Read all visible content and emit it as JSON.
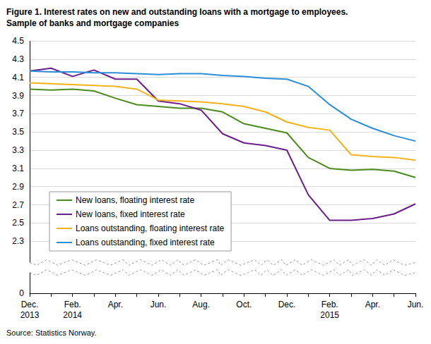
{
  "chart_data": {
    "type": "line",
    "title": "Figure 1. Interest rates on new and outstanding loans with a mortgage to employees.\nSample of banks and mortgage companies",
    "source": "Source: Statistics Norway.",
    "categories": [
      "Dec.\n2013",
      null,
      "Feb.\n2014",
      null,
      "Apr.",
      null,
      "Jun.",
      null,
      "Aug.",
      null,
      "Oct.",
      null,
      "Dec.",
      null,
      "Feb.\n2015",
      null,
      "Apr.",
      null,
      "Jun."
    ],
    "series": [
      {
        "name": "New loans, floating interest rate",
        "color": "#4b8b1e",
        "values": [
          3.97,
          3.96,
          3.97,
          3.95,
          3.87,
          3.8,
          3.78,
          3.76,
          3.76,
          3.72,
          3.59,
          3.54,
          3.49,
          3.22,
          3.1,
          3.08,
          3.09,
          3.07,
          3.0
        ]
      },
      {
        "name": "New loans, fixed interest rate",
        "color": "#6a1f8a",
        "values": [
          4.17,
          4.2,
          4.11,
          4.18,
          4.08,
          4.08,
          3.84,
          3.81,
          3.74,
          3.48,
          3.38,
          3.35,
          3.3,
          2.81,
          2.53,
          2.53,
          2.55,
          2.6,
          2.71
        ]
      },
      {
        "name": "Loans outstanding, floating interest rate",
        "color": "#f2b21a",
        "values": [
          4.04,
          4.03,
          4.02,
          4.01,
          4.0,
          3.97,
          3.85,
          3.84,
          3.83,
          3.81,
          3.78,
          3.72,
          3.61,
          3.55,
          3.52,
          3.25,
          3.23,
          3.22,
          3.19
        ]
      },
      {
        "name": "Loans outstanding, fixed interest rate",
        "color": "#2a8fd6",
        "values": [
          4.17,
          4.16,
          4.16,
          4.15,
          4.15,
          4.14,
          4.13,
          4.14,
          4.14,
          4.12,
          4.11,
          4.09,
          4.08,
          4.0,
          3.8,
          3.64,
          3.54,
          3.46,
          3.4
        ]
      }
    ],
    "ylim": [
      0,
      4.5
    ],
    "yticks": [
      0,
      2.3,
      2.5,
      2.7,
      2.9,
      3.1,
      3.3,
      3.5,
      3.7,
      3.9,
      4.1,
      4.3,
      4.5
    ],
    "grid": true,
    "legend": "lower left"
  }
}
